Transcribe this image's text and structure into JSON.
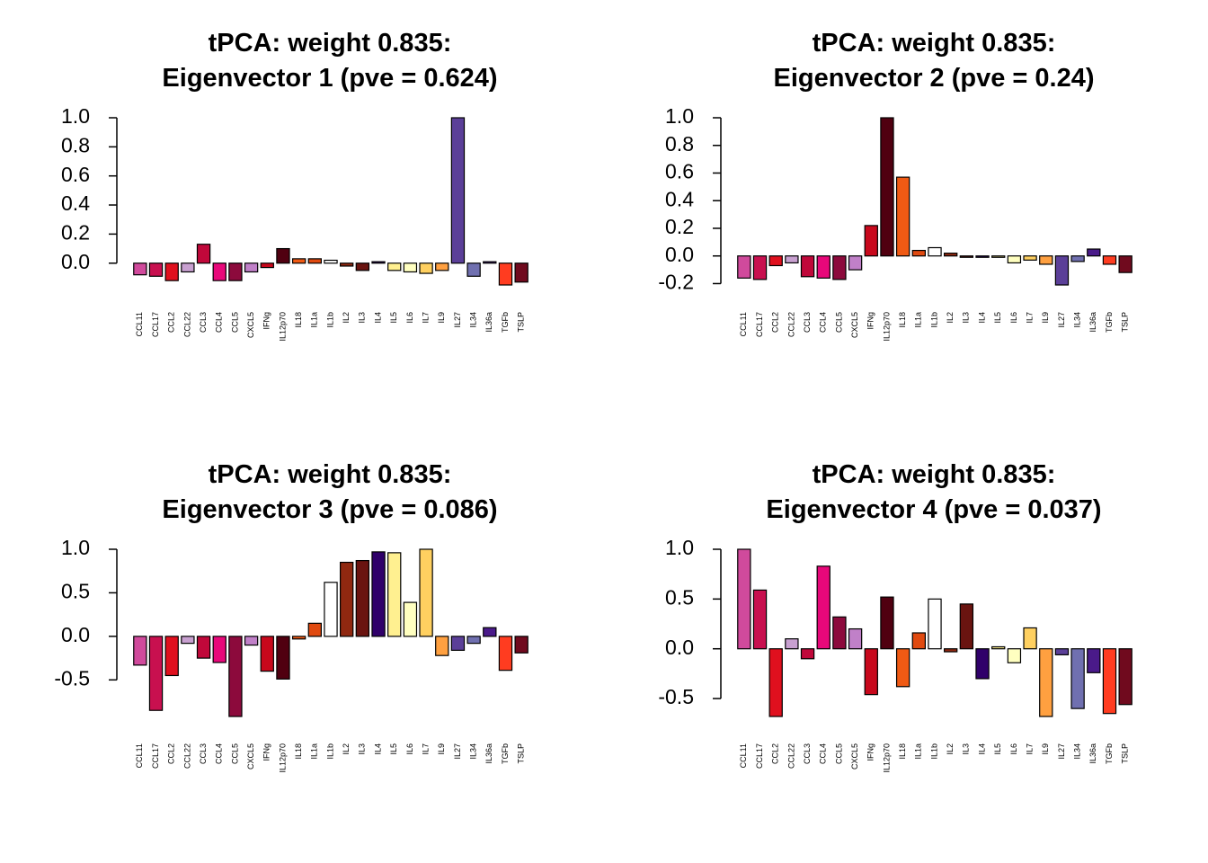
{
  "chart_data": [
    {
      "type": "bar",
      "title": [
        "tPCA: weight 0.835:",
        "Eigenvector 1 (pve = 0.624)"
      ],
      "categories": [
        "CCL11",
        "CCL17",
        "CCL2",
        "CCL22",
        "CCL3",
        "CCL4",
        "CCL5",
        "CXCL5",
        "IFNg",
        "IL12p70",
        "IL18",
        "IL1a",
        "IL1b",
        "IL2",
        "IL3",
        "IL4",
        "IL5",
        "IL6",
        "IL7",
        "IL9",
        "IL27",
        "IL34",
        "IL36a",
        "TGFb",
        "TSLP"
      ],
      "values": [
        -0.08,
        -0.09,
        -0.12,
        -0.06,
        0.13,
        -0.12,
        -0.12,
        -0.06,
        -0.03,
        0.1,
        0.03,
        0.03,
        0.02,
        -0.02,
        -0.05,
        0.01,
        -0.05,
        -0.06,
        -0.07,
        -0.05,
        1.0,
        -0.09,
        0.01,
        -0.15,
        -0.13
      ],
      "colors": [
        "#d04a9c",
        "#c8104f",
        "#e0101e",
        "#c8a0d0",
        "#c0083a",
        "#e8087a",
        "#8c0a3c",
        "#c080c8",
        "#c8081c",
        "#500010",
        "#f05a14",
        "#e04a10",
        "#ffffff",
        "#902810",
        "#6a1410",
        "#30006a",
        "#fff090",
        "#ffffc0",
        "#ffd060",
        "#ffa040",
        "#5b3f98",
        "#7070b0",
        "#4a1a8a",
        "#ff3c20",
        "#700a1e"
      ],
      "ylim": [
        -0.15,
        1.0
      ],
      "yticks": [
        {
          "value": 0,
          "label": "0.0"
        },
        0.2,
        0.4,
        0.6,
        0.8,
        {
          "value": 1,
          "label": "1.0"
        }
      ]
    },
    {
      "type": "bar",
      "title": [
        "tPCA: weight 0.835:",
        "Eigenvector 2 (pve = 0.24)"
      ],
      "categories": [
        "CCL11",
        "CCL17",
        "CCL2",
        "CCL22",
        "CCL3",
        "CCL4",
        "CCL5",
        "CXCL5",
        "IFNg",
        "IL12p70",
        "IL18",
        "IL1a",
        "IL1b",
        "IL2",
        "IL3",
        "IL4",
        "IL5",
        "IL6",
        "IL7",
        "IL9",
        "IL27",
        "IL34",
        "IL36a",
        "TGFb",
        "TSLP"
      ],
      "values": [
        -0.16,
        -0.17,
        -0.07,
        -0.05,
        -0.15,
        -0.16,
        -0.17,
        -0.1,
        0.22,
        1.0,
        0.57,
        0.04,
        0.06,
        0.02,
        -0.01,
        -0.01,
        -0.01,
        -0.05,
        -0.03,
        -0.06,
        -0.21,
        -0.04,
        0.05,
        -0.06,
        -0.12
      ],
      "colors": [
        "#d04a9c",
        "#c8104f",
        "#e0101e",
        "#c8a0d0",
        "#c0083a",
        "#e8087a",
        "#8c0a3c",
        "#c080c8",
        "#c8081c",
        "#500010",
        "#f05a14",
        "#e04a10",
        "#ffffff",
        "#902810",
        "#6a1410",
        "#30006a",
        "#fff090",
        "#ffffc0",
        "#ffd060",
        "#ffa040",
        "#5b3f98",
        "#7070b0",
        "#4a1a8a",
        "#ff3c20",
        "#700a1e"
      ],
      "ylim": [
        -0.21,
        1.0
      ],
      "yticks": [
        -0.2,
        {
          "value": 0,
          "label": "0.0"
        },
        0.2,
        0.4,
        0.6,
        0.8,
        {
          "value": 1,
          "label": "1.0"
        }
      ]
    },
    {
      "type": "bar",
      "title": [
        "tPCA: weight 0.835:",
        "Eigenvector 3 (pve = 0.086)"
      ],
      "categories": [
        "CCL11",
        "CCL17",
        "CCL2",
        "CCL22",
        "CCL3",
        "CCL4",
        "CCL5",
        "CXCL5",
        "IFNg",
        "IL12p70",
        "IL18",
        "IL1a",
        "IL1b",
        "IL2",
        "IL3",
        "IL4",
        "IL5",
        "IL6",
        "IL7",
        "IL9",
        "IL27",
        "IL34",
        "IL36a",
        "TGFb",
        "TSLP"
      ],
      "values": [
        -0.33,
        -0.85,
        -0.45,
        -0.08,
        -0.25,
        -0.3,
        -0.92,
        -0.1,
        -0.4,
        -0.49,
        -0.03,
        0.15,
        0.62,
        0.85,
        0.87,
        0.97,
        0.96,
        0.39,
        1.0,
        -0.22,
        -0.16,
        -0.08,
        0.1,
        -0.39,
        -0.19
      ],
      "colors": [
        "#d04a9c",
        "#c8104f",
        "#e0101e",
        "#c8a0d0",
        "#c0083a",
        "#e8087a",
        "#8c0a3c",
        "#c080c8",
        "#c8081c",
        "#500010",
        "#f05a14",
        "#e04a10",
        "#ffffff",
        "#902810",
        "#6a1410",
        "#30006a",
        "#fff090",
        "#ffffc0",
        "#ffd060",
        "#ffa040",
        "#5b3f98",
        "#7070b0",
        "#4a1a8a",
        "#ff3c20",
        "#700a1e"
      ],
      "ylim": [
        -0.92,
        1.0
      ],
      "yticks": [
        -0.5,
        {
          "value": 0,
          "label": "0.0"
        },
        0.5,
        {
          "value": 1,
          "label": "1.0"
        }
      ]
    },
    {
      "type": "bar",
      "title": [
        "tPCA: weight 0.835:",
        "Eigenvector 4 (pve = 0.037)"
      ],
      "categories": [
        "CCL11",
        "CCL17",
        "CCL2",
        "CCL22",
        "CCL3",
        "CCL4",
        "CCL5",
        "CXCL5",
        "IFNg",
        "IL12p70",
        "IL18",
        "IL1a",
        "IL1b",
        "IL2",
        "IL3",
        "IL4",
        "IL5",
        "IL6",
        "IL7",
        "IL9",
        "IL27",
        "IL34",
        "IL36a",
        "TGFb",
        "TSLP"
      ],
      "values": [
        1.0,
        0.59,
        -0.68,
        0.1,
        -0.1,
        0.83,
        0.32,
        0.2,
        -0.46,
        0.52,
        -0.38,
        0.16,
        0.5,
        -0.03,
        0.45,
        -0.3,
        0.02,
        -0.14,
        0.21,
        -0.68,
        -0.06,
        -0.6,
        -0.24,
        -0.65,
        -0.56
      ],
      "colors": [
        "#d04a9c",
        "#c8104f",
        "#e0101e",
        "#c8a0d0",
        "#c0083a",
        "#e8087a",
        "#8c0a3c",
        "#c080c8",
        "#c8081c",
        "#500010",
        "#f05a14",
        "#e04a10",
        "#ffffff",
        "#902810",
        "#6a1410",
        "#30006a",
        "#fff090",
        "#ffffc0",
        "#ffd060",
        "#ffa040",
        "#5b3f98",
        "#7070b0",
        "#4a1a8a",
        "#ff3c20",
        "#700a1e"
      ],
      "ylim": [
        -0.68,
        1.0
      ],
      "yticks": [
        -0.5,
        {
          "value": 0,
          "label": "0.0"
        },
        0.5,
        {
          "value": 1,
          "label": "1.0"
        }
      ]
    }
  ]
}
